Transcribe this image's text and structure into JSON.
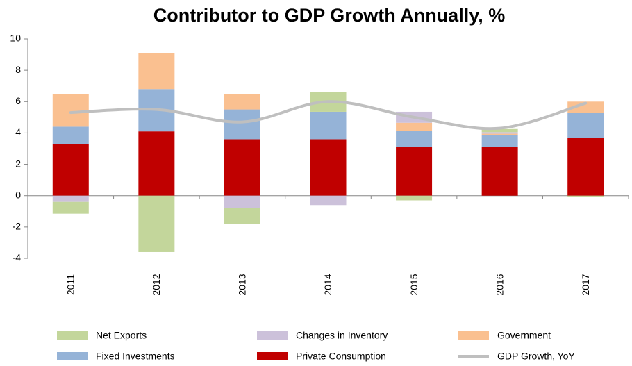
{
  "chart_data": {
    "type": "bar",
    "stacked": true,
    "title": "Contributor to GDP Growth Annually, %",
    "categories": [
      "2011",
      "2012",
      "2013",
      "2014",
      "2015",
      "2016",
      "2017"
    ],
    "series": [
      {
        "name": "Net Exports",
        "color": "#c3d69b",
        "values": [
          -0.75,
          -3.6,
          -1.0,
          1.25,
          -0.3,
          0.2,
          -0.1
        ]
      },
      {
        "name": "Changes in Inventory",
        "color": "#ccc1da",
        "values": [
          -0.4,
          0,
          -0.8,
          -0.6,
          0.7,
          0.1,
          0
        ]
      },
      {
        "name": "Government",
        "color": "#fac090",
        "values": [
          2.1,
          2.3,
          1.0,
          0,
          0.5,
          0.1,
          0.7
        ]
      },
      {
        "name": "Fixed Investments",
        "color": "#95b3d7",
        "values": [
          1.1,
          2.7,
          1.9,
          1.75,
          1.05,
          0.75,
          1.6
        ]
      },
      {
        "name": "Private Consumption",
        "color": "#c00000",
        "values": [
          3.3,
          4.1,
          3.6,
          3.6,
          3.1,
          3.1,
          3.7
        ]
      },
      {
        "name": "GDP Growth, YoY",
        "color": "#bfbfbf",
        "type": "line",
        "values": [
          5.3,
          5.5,
          4.7,
          6.0,
          5.0,
          4.3,
          5.9
        ]
      }
    ],
    "ylim": [
      -4,
      10
    ],
    "yticks": [
      -4,
      -2,
      0,
      2,
      4,
      6,
      8,
      10
    ],
    "grid": false
  }
}
